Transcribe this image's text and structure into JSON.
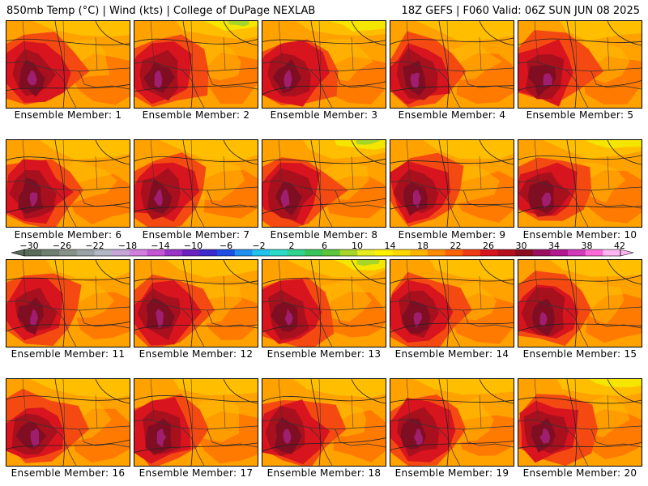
{
  "header": {
    "left": "850mb Temp (°C) | Wind (kts) | College of DuPage NEXLAB",
    "right": "18Z GEFS | F060 Valid: 06Z SUN JUN 08 2025"
  },
  "panels": [
    {
      "label": "Ensemble Member: 1"
    },
    {
      "label": "Ensemble Member: 2"
    },
    {
      "label": "Ensemble Member: 3"
    },
    {
      "label": "Ensemble Member: 4"
    },
    {
      "label": "Ensemble Member: 5"
    },
    {
      "label": "Ensemble Member: 6"
    },
    {
      "label": "Ensemble Member: 7"
    },
    {
      "label": "Ensemble Member: 8"
    },
    {
      "label": "Ensemble Member: 9"
    },
    {
      "label": "Ensemble Member: 10"
    },
    {
      "label": "Ensemble Member: 11"
    },
    {
      "label": "Ensemble Member: 12"
    },
    {
      "label": "Ensemble Member: 13"
    },
    {
      "label": "Ensemble Member: 14"
    },
    {
      "label": "Ensemble Member: 15"
    },
    {
      "label": "Ensemble Member: 16"
    },
    {
      "label": "Ensemble Member: 17"
    },
    {
      "label": "Ensemble Member: 18"
    },
    {
      "label": "Ensemble Member: 19"
    },
    {
      "label": "Ensemble Member: 20"
    }
  ],
  "colorbar": {
    "tick_labels": [
      "−30",
      "−26",
      "−22",
      "−18",
      "−14",
      "−10",
      "−6",
      "−2",
      "2",
      "6",
      "10",
      "14",
      "18",
      "22",
      "26",
      "30",
      "34",
      "38",
      "42"
    ],
    "colors": [
      "#5a6b5a",
      "#6f7f70",
      "#879388",
      "#9aa3a6",
      "#b3b8c4",
      "#c6a6d8",
      "#d27fe0",
      "#c456d6",
      "#9a35c8",
      "#6a22c0",
      "#3a2ad0",
      "#1c4fe6",
      "#1f8ff0",
      "#21c2ee",
      "#2adcc8",
      "#2fd38e",
      "#37c55a",
      "#5cc63a",
      "#a6d62a",
      "#e7ec22",
      "#fff200",
      "#ffd800",
      "#ffb400",
      "#ff8c00",
      "#ff6400",
      "#f03c14",
      "#d8141e",
      "#b4101e",
      "#8a0e1e",
      "#9a1060",
      "#b21890",
      "#d23ab8",
      "#ff6ad8",
      "#ffb6f0"
    ]
  },
  "map_colors": {
    "base": "#ffa200",
    "orange_light": "#ffbe00",
    "orange_dark": "#ff7a00",
    "red_light": "#f44a12",
    "red": "#d8141e",
    "red_dark": "#a8101e",
    "maroon": "#800e22",
    "magenta": "#a01e70",
    "yellow": "#f4e600",
    "green": "#a6d62a"
  }
}
